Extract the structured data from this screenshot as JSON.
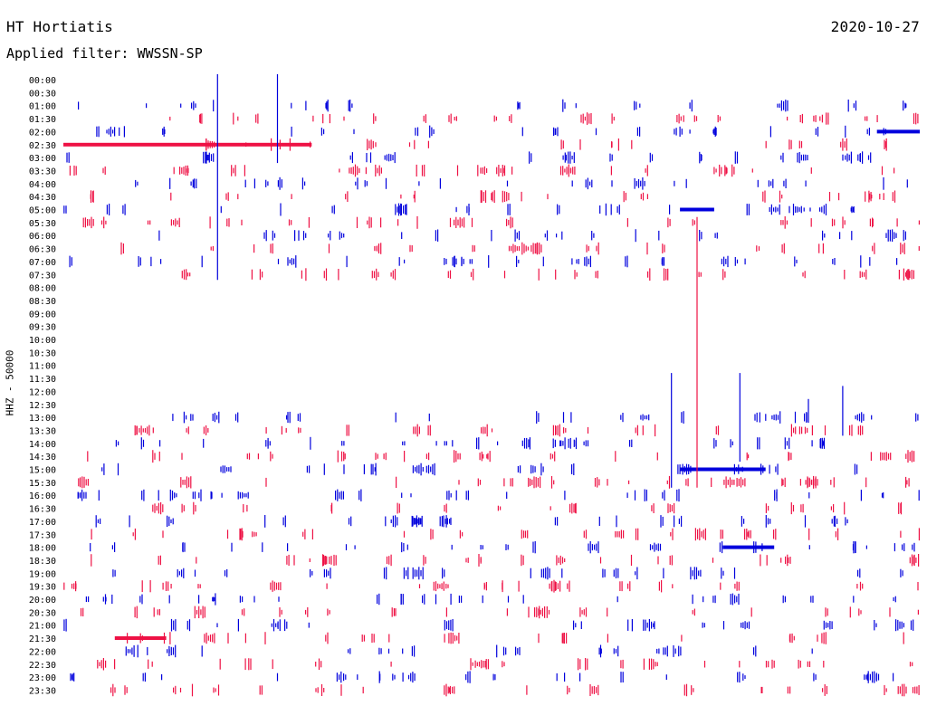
{
  "header": {
    "station": "HT Hortiatis",
    "date": "2020-10-27",
    "filter": "Applied filter: WWSSN-SP"
  },
  "axis": {
    "ylabel": "HHZ - 50000"
  },
  "colors": {
    "odd_trace": "#0000dd",
    "even_trace": "#ee1144"
  },
  "chart_data": {
    "type": "line",
    "time_labels": [
      "00:00",
      "00:30",
      "01:00",
      "01:30",
      "02:00",
      "02:30",
      "03:00",
      "03:30",
      "04:00",
      "04:30",
      "05:00",
      "05:30",
      "06:00",
      "06:30",
      "07:00",
      "07:30",
      "08:00",
      "08:30",
      "09:00",
      "09:30",
      "10:00",
      "10:30",
      "11:00",
      "11:30",
      "12:00",
      "12:30",
      "13:00",
      "13:30",
      "14:00",
      "14:30",
      "15:00",
      "15:30",
      "16:00",
      "16:30",
      "17:00",
      "17:30",
      "18:00",
      "18:30",
      "19:00",
      "19:30",
      "20:00",
      "20:30",
      "21:00",
      "21:30",
      "22:00",
      "22:30",
      "23:00",
      "23:30"
    ],
    "activity": [
      0,
      0,
      3,
      3,
      3,
      3,
      3,
      3,
      3,
      3,
      3,
      3,
      3,
      3,
      3,
      3,
      0,
      0,
      0,
      0,
      0,
      0,
      0,
      0,
      0,
      0,
      3,
      3,
      3,
      3,
      3,
      3,
      3,
      3,
      3,
      3,
      3,
      3,
      3,
      3,
      3,
      3,
      3,
      3,
      3,
      3,
      3,
      3
    ],
    "noise_bands": [
      {
        "row": "02:30",
        "from": 0.0,
        "to": 0.29
      },
      {
        "row": "05:00",
        "from": 0.72,
        "to": 0.76
      },
      {
        "row": "15:00",
        "from": 0.72,
        "to": 0.82
      },
      {
        "row": "18:00",
        "from": 0.77,
        "to": 0.83
      },
      {
        "row": "21:30",
        "from": 0.06,
        "to": 0.12
      },
      {
        "row": "02:00",
        "from": 0.95,
        "to": 1.0
      }
    ],
    "spikes": [
      {
        "row": "01:00",
        "from": "00:00",
        "to": "07:30",
        "x": 0.18
      },
      {
        "row": "01:00",
        "from": "00:00",
        "to": "03:00",
        "x": 0.25
      },
      {
        "row": "07:30",
        "from": "05:30",
        "to": "15:30",
        "x": 0.74
      },
      {
        "row": "15:00",
        "from": "11:30",
        "to": "15:30",
        "x": 0.71
      },
      {
        "row": "15:00",
        "from": "11:30",
        "to": "14:30",
        "x": 0.79
      },
      {
        "row": "13:00",
        "from": "12:30",
        "to": "13:00",
        "x": 0.87
      },
      {
        "row": "13:00",
        "from": "12:00",
        "to": "13:30",
        "x": 0.91
      }
    ]
  }
}
